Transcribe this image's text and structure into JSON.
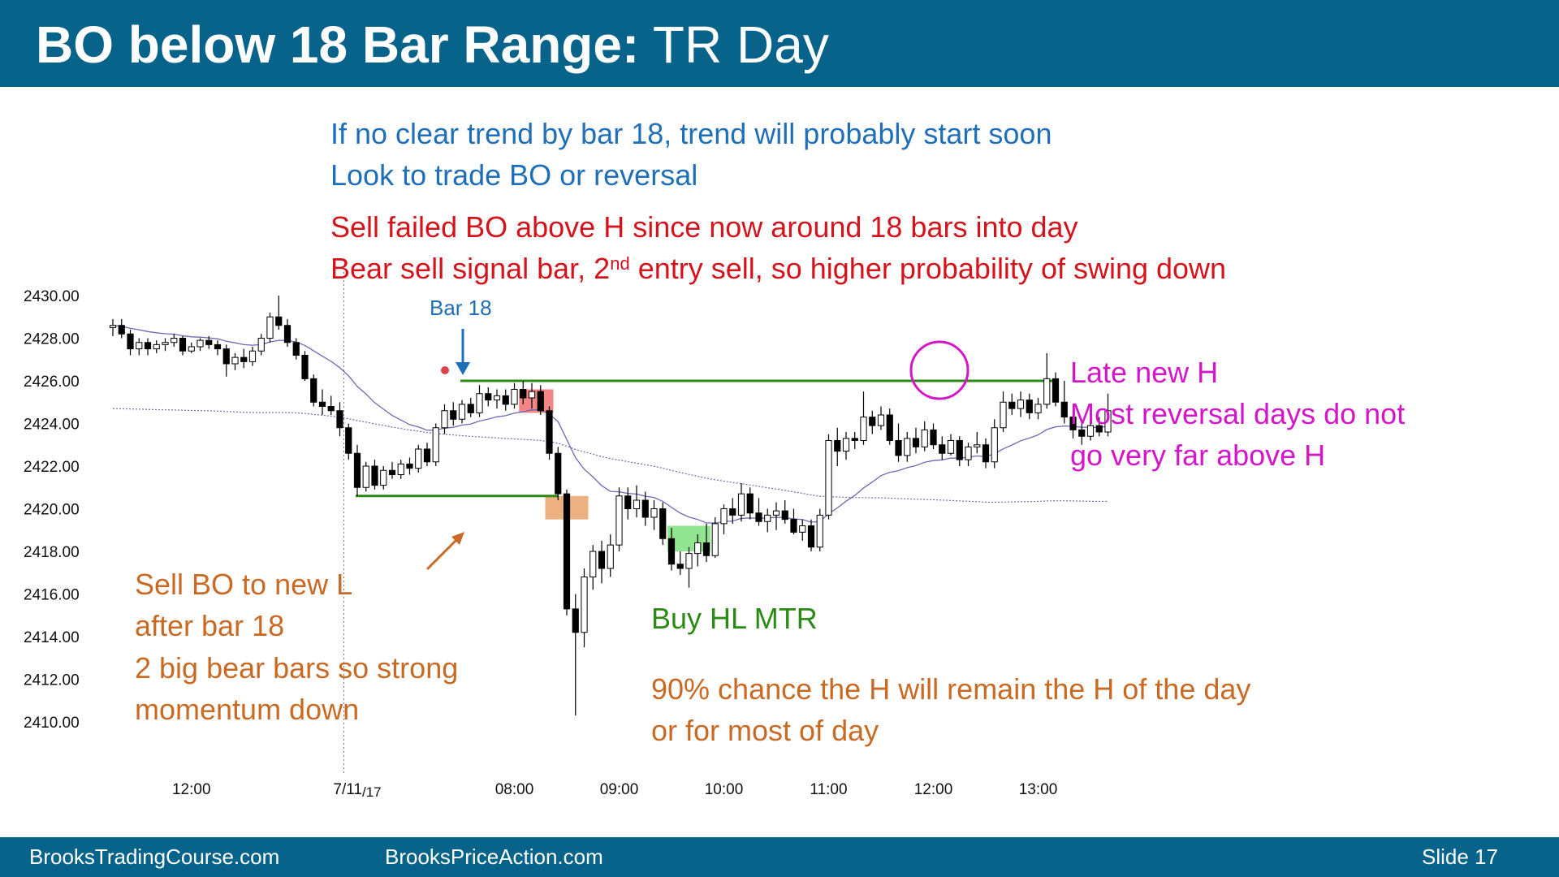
{
  "header": {
    "title_bold": "BO below 18 Bar Range:",
    "title_rest": "TR Day"
  },
  "footer": {
    "left": "BrooksTradingCourse.com",
    "middle": "BrooksPriceAction.com",
    "slide": "Slide  17"
  },
  "notes": {
    "blue_line1": "If no clear trend by bar 18, trend will probably start soon",
    "blue_line2": "Look to trade BO or reversal",
    "red_line1": "Sell failed BO above H since now around 18 bars into day",
    "red_line2_a": "Bear sell signal bar, 2",
    "red_line2_sup": "nd",
    "red_line2_b": " entry sell, so higher probability of swing down",
    "bar18": "Bar 18",
    "orange_l1": "Sell BO to new L",
    "orange_l2": "after bar 18",
    "orange_l3": "2 big bear bars so strong",
    "orange_l4": "momentum down",
    "green": "Buy HL MTR",
    "orange2_l1": "90% chance the H will remain the H of the day",
    "orange2_l2": "or for most of day",
    "magenta_l1": "Late new H",
    "magenta_l2": "Most reversal days do not",
    "magenta_l3": "go very far above H"
  },
  "colors": {
    "header_bg": "#08638a",
    "ema": "#6b6bb5",
    "level": "#2a8a15",
    "highlight_red": "#f07070",
    "highlight_orange": "#e8a36a",
    "highlight_green": "#7ee07e",
    "circle": "#d316c9",
    "arrow_blue": "#1f6fb8",
    "arrow_orange": "#c96a24"
  },
  "chart_data": {
    "type": "candlestick",
    "ylim": [
      2409,
      2431
    ],
    "yticks": [
      "2430.00",
      "2428.00",
      "2426.00",
      "2424.00",
      "2422.00",
      "2420.00",
      "2418.00",
      "2416.00",
      "2414.00",
      "2412.00",
      "2410.00"
    ],
    "xticks": [
      {
        "label": "12:00",
        "bar": 9
      },
      {
        "label": "7/11",
        "sub": "/17",
        "bar": 28
      },
      {
        "label": "08:00",
        "bar": 46
      },
      {
        "label": "09:00",
        "bar": 58
      },
      {
        "label": "10:00",
        "bar": 70
      },
      {
        "label": "11:00",
        "bar": 82
      },
      {
        "label": "12:00",
        "bar": 94
      },
      {
        "label": "13:00",
        "bar": 106
      }
    ],
    "day_separator_bar": 26,
    "bars": [
      [
        2428.5,
        2428.9,
        2428.1,
        2428.6
      ],
      [
        2428.6,
        2428.9,
        2428.0,
        2428.2
      ],
      [
        2428.2,
        2428.4,
        2427.2,
        2427.5
      ],
      [
        2427.5,
        2428.0,
        2427.2,
        2427.8
      ],
      [
        2427.8,
        2428.0,
        2427.2,
        2427.5
      ],
      [
        2427.5,
        2427.9,
        2427.3,
        2427.7
      ],
      [
        2427.7,
        2428.0,
        2427.4,
        2427.8
      ],
      [
        2427.8,
        2428.2,
        2427.6,
        2428.0
      ],
      [
        2428.0,
        2428.1,
        2427.2,
        2427.4
      ],
      [
        2427.4,
        2427.8,
        2427.3,
        2427.6
      ],
      [
        2427.6,
        2428.0,
        2427.4,
        2427.9
      ],
      [
        2427.9,
        2428.1,
        2427.5,
        2427.7
      ],
      [
        2427.7,
        2427.9,
        2427.2,
        2427.5
      ],
      [
        2427.5,
        2427.7,
        2426.2,
        2426.8
      ],
      [
        2426.8,
        2427.3,
        2426.5,
        2427.1
      ],
      [
        2427.1,
        2427.5,
        2426.6,
        2426.9
      ],
      [
        2426.9,
        2427.6,
        2426.7,
        2427.4
      ],
      [
        2427.4,
        2428.2,
        2427.2,
        2428.0
      ],
      [
        2428.0,
        2429.2,
        2427.8,
        2429.0
      ],
      [
        2429.0,
        2430.0,
        2428.4,
        2428.6
      ],
      [
        2428.6,
        2428.9,
        2427.6,
        2427.8
      ],
      [
        2427.8,
        2428.0,
        2427.0,
        2427.2
      ],
      [
        2427.2,
        2427.4,
        2426.0,
        2426.1
      ],
      [
        2426.1,
        2426.3,
        2424.8,
        2425.0
      ],
      [
        2425.0,
        2425.6,
        2424.4,
        2424.8
      ],
      [
        2424.8,
        2425.3,
        2424.4,
        2424.6
      ],
      [
        2424.6,
        2425.0,
        2423.4,
        2423.8
      ],
      [
        2423.8,
        2424.0,
        2422.3,
        2422.6
      ],
      [
        2422.6,
        2423.0,
        2420.6,
        2421.0
      ],
      [
        2421.0,
        2422.2,
        2420.8,
        2422.0
      ],
      [
        2422.0,
        2422.3,
        2420.9,
        2421.1
      ],
      [
        2421.1,
        2422.0,
        2420.9,
        2421.8
      ],
      [
        2421.8,
        2422.2,
        2421.4,
        2421.6
      ],
      [
        2421.6,
        2422.3,
        2421.4,
        2422.1
      ],
      [
        2422.1,
        2422.4,
        2421.6,
        2421.9
      ],
      [
        2421.9,
        2423.0,
        2421.7,
        2422.8
      ],
      [
        2422.8,
        2423.1,
        2422.0,
        2422.2
      ],
      [
        2422.2,
        2424.0,
        2422.0,
        2423.8
      ],
      [
        2423.8,
        2424.9,
        2423.5,
        2424.6
      ],
      [
        2424.6,
        2425.0,
        2423.9,
        2424.2
      ],
      [
        2424.2,
        2425.1,
        2424.0,
        2424.9
      ],
      [
        2424.9,
        2425.2,
        2424.3,
        2424.5
      ],
      [
        2424.5,
        2425.8,
        2424.3,
        2425.4
      ],
      [
        2425.4,
        2425.7,
        2424.8,
        2425.1
      ],
      [
        2425.1,
        2425.6,
        2424.7,
        2425.3
      ],
      [
        2425.3,
        2425.6,
        2424.6,
        2424.9
      ],
      [
        2424.9,
        2425.9,
        2424.7,
        2425.6
      ],
      [
        2425.6,
        2426.0,
        2424.9,
        2425.2
      ],
      [
        2425.2,
        2425.9,
        2424.7,
        2425.5
      ],
      [
        2425.5,
        2425.8,
        2424.4,
        2424.6
      ],
      [
        2424.6,
        2424.8,
        2422.3,
        2422.6
      ],
      [
        2422.6,
        2422.9,
        2420.4,
        2420.7
      ],
      [
        2420.7,
        2420.9,
        2415.0,
        2415.3
      ],
      [
        2415.3,
        2416.0,
        2410.3,
        2414.2
      ],
      [
        2414.2,
        2417.2,
        2413.5,
        2416.8
      ],
      [
        2416.8,
        2418.3,
        2416.2,
        2418.0
      ],
      [
        2418.0,
        2418.5,
        2416.5,
        2417.2
      ],
      [
        2417.2,
        2418.8,
        2416.8,
        2418.3
      ],
      [
        2418.3,
        2421.0,
        2418.0,
        2420.6
      ],
      [
        2420.6,
        2421.0,
        2419.5,
        2420.0
      ],
      [
        2420.0,
        2421.1,
        2419.6,
        2420.4
      ],
      [
        2420.4,
        2420.8,
        2419.2,
        2419.6
      ],
      [
        2419.6,
        2420.4,
        2419.0,
        2420.0
      ],
      [
        2420.0,
        2420.3,
        2418.3,
        2418.6
      ],
      [
        2418.6,
        2419.1,
        2417.1,
        2417.4
      ],
      [
        2417.4,
        2418.0,
        2416.9,
        2417.2
      ],
      [
        2417.2,
        2418.2,
        2416.3,
        2417.9
      ],
      [
        2417.9,
        2418.8,
        2417.3,
        2418.4
      ],
      [
        2418.4,
        2419.3,
        2417.5,
        2417.8
      ],
      [
        2417.8,
        2419.6,
        2417.7,
        2419.3
      ],
      [
        2419.3,
        2420.2,
        2418.8,
        2420.0
      ],
      [
        2420.0,
        2420.5,
        2419.3,
        2419.7
      ],
      [
        2419.7,
        2421.2,
        2419.4,
        2420.7
      ],
      [
        2420.7,
        2421.0,
        2419.5,
        2419.8
      ],
      [
        2419.8,
        2420.5,
        2419.2,
        2419.4
      ],
      [
        2419.4,
        2420.0,
        2418.9,
        2419.7
      ],
      [
        2419.7,
        2420.3,
        2419.0,
        2419.9
      ],
      [
        2419.9,
        2420.4,
        2419.3,
        2419.5
      ],
      [
        2419.5,
        2420.0,
        2418.8,
        2418.9
      ],
      [
        2418.9,
        2419.5,
        2418.5,
        2419.2
      ],
      [
        2419.2,
        2419.5,
        2418.0,
        2418.2
      ],
      [
        2418.2,
        2420.0,
        2418.0,
        2419.7
      ],
      [
        2419.7,
        2423.5,
        2419.5,
        2423.2
      ],
      [
        2423.2,
        2423.8,
        2422.0,
        2422.7
      ],
      [
        2422.7,
        2423.6,
        2422.3,
        2423.3
      ],
      [
        2423.3,
        2423.6,
        2422.8,
        2423.2
      ],
      [
        2423.2,
        2425.5,
        2423.0,
        2424.3
      ],
      [
        2424.3,
        2424.6,
        2423.5,
        2423.9
      ],
      [
        2423.9,
        2424.8,
        2423.7,
        2424.4
      ],
      [
        2424.4,
        2424.7,
        2423.0,
        2423.2
      ],
      [
        2423.2,
        2424.0,
        2422.2,
        2422.5
      ],
      [
        2422.5,
        2423.6,
        2422.2,
        2423.3
      ],
      [
        2423.3,
        2423.8,
        2422.6,
        2422.9
      ],
      [
        2422.9,
        2424.1,
        2422.7,
        2423.7
      ],
      [
        2423.7,
        2424.0,
        2422.8,
        2423.0
      ],
      [
        2423.0,
        2423.4,
        2422.3,
        2422.6
      ],
      [
        2422.6,
        2423.5,
        2422.5,
        2423.2
      ],
      [
        2423.2,
        2423.4,
        2422.0,
        2422.3
      ],
      [
        2422.3,
        2423.1,
        2422.0,
        2422.9
      ],
      [
        2422.9,
        2423.6,
        2422.6,
        2423.0
      ],
      [
        2423.0,
        2423.3,
        2421.9,
        2422.2
      ],
      [
        2422.2,
        2424.2,
        2421.9,
        2423.8
      ],
      [
        2423.8,
        2425.5,
        2423.6,
        2425.0
      ],
      [
        2425.0,
        2425.4,
        2424.4,
        2424.7
      ],
      [
        2424.7,
        2425.5,
        2424.3,
        2425.1
      ],
      [
        2425.1,
        2425.4,
        2424.2,
        2424.5
      ],
      [
        2424.5,
        2425.2,
        2424.2,
        2424.9
      ],
      [
        2424.9,
        2427.3,
        2424.7,
        2426.1
      ],
      [
        2426.1,
        2426.4,
        2424.8,
        2425.0
      ],
      [
        2425.0,
        2426.0,
        2424.0,
        2424.3
      ],
      [
        2424.3,
        2424.6,
        2423.3,
        2423.7
      ],
      [
        2423.7,
        2424.2,
        2423.0,
        2423.4
      ],
      [
        2423.4,
        2424.4,
        2423.2,
        2423.9
      ],
      [
        2423.9,
        2424.3,
        2423.4,
        2423.6
      ],
      [
        2423.6,
        2425.4,
        2423.4,
        2424.6
      ]
    ],
    "levels": [
      {
        "name": "high",
        "price": 2426.0,
        "from_bar": 40,
        "to_bar": 108
      },
      {
        "name": "range-low",
        "price": 2420.6,
        "from_bar": 28,
        "to_bar": 51
      }
    ],
    "highlights": [
      {
        "color": "red",
        "bar_from": 47,
        "bar_to": 50,
        "price_top": 2425.6,
        "price_bottom": 2424.5
      },
      {
        "color": "orange",
        "bar_from": 50,
        "bar_to": 54,
        "price_top": 2420.6,
        "price_bottom": 2419.5
      },
      {
        "color": "green",
        "bar_from": 64,
        "bar_to": 68,
        "price_top": 2419.2,
        "price_bottom": 2418.0
      }
    ]
  }
}
